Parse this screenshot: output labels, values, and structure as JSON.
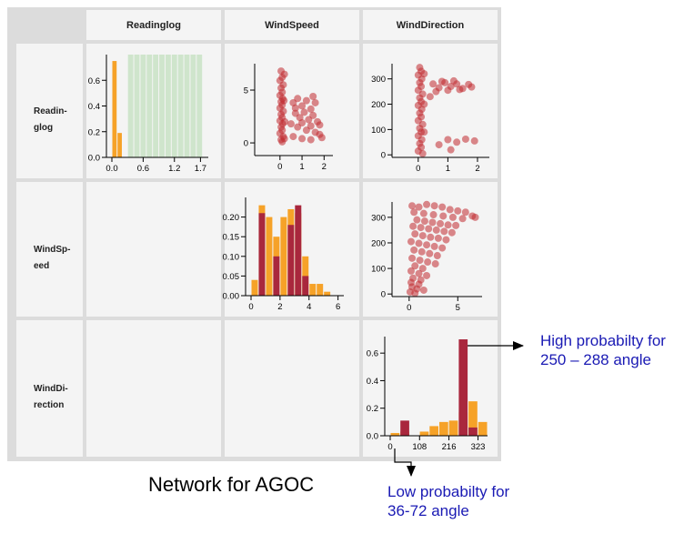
{
  "caption": "Network for AGOC",
  "columns": [
    "Readinglog",
    "WindSpeed",
    "WindDirection"
  ],
  "rows": [
    [
      "Readin-",
      "glog"
    ],
    [
      "WindSp-",
      "eed"
    ],
    [
      "WindDi-",
      "rection"
    ]
  ],
  "annotations": {
    "high": [
      "High probabilty for",
      "250 – 288 angle"
    ],
    "low": [
      "Low probabilty for",
      "36-72 angle"
    ]
  },
  "colors": {
    "orange": "#f6a228",
    "dark_red": "#a9273d",
    "scatter": "#c12a2f",
    "green_band": "#cfe5cc",
    "annotation_text": "#1a1ab4"
  },
  "chart_data": [
    {
      "type": "bar",
      "panel": "Readinglog-Readinglog",
      "bins": [
        [
          0.0,
          0.1
        ],
        [
          0.1,
          0.2
        ]
      ],
      "values": [
        0.75,
        0.19
      ],
      "highlight_bins_start": [
        0.3,
        0.42,
        0.54,
        0.66,
        0.78,
        0.9,
        1.02,
        1.14,
        1.26,
        1.38,
        1.5,
        1.62
      ],
      "highlight_bin_width": 0.12,
      "highlight_height": 0.8,
      "xlim": [
        0,
        1.85
      ],
      "ylim": [
        0,
        0.8
      ],
      "xticks": [
        "0.0",
        "0.6",
        "1.2",
        "1.7"
      ],
      "xtick_values": [
        0,
        0.6,
        1.2,
        1.7
      ],
      "yticks": [
        "0.0",
        "0.2",
        "0.4",
        "0.6"
      ],
      "ytick_values": [
        0,
        0.2,
        0.4,
        0.6
      ]
    },
    {
      "type": "scatter",
      "panel": "WindSpeed-Readinglog",
      "xlim": [
        -0.9,
        2.4
      ],
      "ylim": [
        -1.2,
        7.5
      ],
      "xticks": [
        "0",
        "1",
        "2"
      ],
      "xtick_values": [
        0,
        1,
        2
      ],
      "yticks": [
        "0",
        "5"
      ],
      "ytick_values": [
        0,
        5
      ],
      "points": [
        [
          0.05,
          6.8
        ],
        [
          0.1,
          6.2
        ],
        [
          0.0,
          5.9
        ],
        [
          0.15,
          5.5
        ],
        [
          0.05,
          5.2
        ],
        [
          0.1,
          4.8
        ],
        [
          0.0,
          4.5
        ],
        [
          0.12,
          4.2
        ],
        [
          0.05,
          3.9
        ],
        [
          0.1,
          3.6
        ],
        [
          0.0,
          3.3
        ],
        [
          0.15,
          3.0
        ],
        [
          0.05,
          2.7
        ],
        [
          0.1,
          2.4
        ],
        [
          0.0,
          2.1
        ],
        [
          0.12,
          1.8
        ],
        [
          0.05,
          1.5
        ],
        [
          0.1,
          1.2
        ],
        [
          0.0,
          0.9
        ],
        [
          0.15,
          0.6
        ],
        [
          0.05,
          0.3
        ],
        [
          0.1,
          0.1
        ],
        [
          0.2,
          6.5
        ],
        [
          0.18,
          4.0
        ],
        [
          0.22,
          2.0
        ],
        [
          0.2,
          0.4
        ],
        [
          0.6,
          3.8
        ],
        [
          0.8,
          4.2
        ],
        [
          1.0,
          3.5
        ],
        [
          1.2,
          4.0
        ],
        [
          1.4,
          3.2
        ],
        [
          1.6,
          3.8
        ],
        [
          0.7,
          2.8
        ],
        [
          0.9,
          2.4
        ],
        [
          1.1,
          2.9
        ],
        [
          1.3,
          2.2
        ],
        [
          1.5,
          2.6
        ],
        [
          1.7,
          2.0
        ],
        [
          0.5,
          1.8
        ],
        [
          0.8,
          1.5
        ],
        [
          1.0,
          1.9
        ],
        [
          1.2,
          1.2
        ],
        [
          1.4,
          1.6
        ],
        [
          1.6,
          1.0
        ],
        [
          1.8,
          0.8
        ],
        [
          1.9,
          0.5
        ],
        [
          0.6,
          0.6
        ],
        [
          1.0,
          0.4
        ],
        [
          1.4,
          0.3
        ],
        [
          0.7,
          3.3
        ],
        [
          1.5,
          4.4
        ],
        [
          1.8,
          1.7
        ]
      ]
    },
    {
      "type": "scatter",
      "panel": "WindDirection-Readinglog",
      "xlim": [
        -0.7,
        2.4
      ],
      "ylim": [
        -10,
        360
      ],
      "xticks": [
        "0",
        "1",
        "2"
      ],
      "xtick_values": [
        0,
        1,
        2
      ],
      "yticks": [
        "0",
        "100",
        "200",
        "300"
      ],
      "ytick_values": [
        0,
        100,
        200,
        300
      ],
      "points": [
        [
          0.05,
          345
        ],
        [
          0.1,
          330
        ],
        [
          0.0,
          315
        ],
        [
          0.12,
          300
        ],
        [
          0.05,
          285
        ],
        [
          0.1,
          270
        ],
        [
          0.0,
          255
        ],
        [
          0.15,
          240
        ],
        [
          0.05,
          225
        ],
        [
          0.1,
          210
        ],
        [
          0.0,
          195
        ],
        [
          0.12,
          180
        ],
        [
          0.05,
          165
        ],
        [
          0.1,
          150
        ],
        [
          0.0,
          135
        ],
        [
          0.15,
          120
        ],
        [
          0.05,
          105
        ],
        [
          0.1,
          90
        ],
        [
          0.0,
          75
        ],
        [
          0.12,
          60
        ],
        [
          0.05,
          45
        ],
        [
          0.1,
          30
        ],
        [
          0.0,
          15
        ],
        [
          0.15,
          5
        ],
        [
          0.2,
          320
        ],
        [
          0.2,
          200
        ],
        [
          0.2,
          90
        ],
        [
          0.5,
          280
        ],
        [
          0.7,
          265
        ],
        [
          0.9,
          285
        ],
        [
          1.1,
          270
        ],
        [
          1.3,
          280
        ],
        [
          1.5,
          262
        ],
        [
          1.7,
          278
        ],
        [
          1.8,
          268
        ],
        [
          0.6,
          250
        ],
        [
          1.0,
          255
        ],
        [
          1.4,
          258
        ],
        [
          0.8,
          290
        ],
        [
          1.2,
          292
        ],
        [
          0.4,
          230
        ],
        [
          1.0,
          60
        ],
        [
          1.3,
          50
        ],
        [
          1.6,
          62
        ],
        [
          1.9,
          55
        ],
        [
          0.7,
          40
        ],
        [
          1.1,
          20
        ]
      ]
    },
    {
      "type": "bar",
      "panel": "WindSpeed-WindSpeed",
      "xlim": [
        0,
        6.4
      ],
      "ylim": [
        0,
        0.25
      ],
      "xticks": [
        "0",
        "2",
        "4",
        "6"
      ],
      "xtick_values": [
        0,
        2,
        4,
        6
      ],
      "yticks": [
        "0.00",
        "0.05",
        "0.10",
        "0.15",
        "0.20"
      ],
      "ytick_values": [
        0,
        0.05,
        0.1,
        0.15,
        0.2
      ],
      "bin_width": 0.5,
      "series": [
        {
          "name": "",
          "color": "orange",
          "bin_starts": [
            0,
            0.5,
            1,
            1.5,
            2,
            2.5,
            3,
            3.5,
            4,
            4.5,
            5,
            5.5
          ],
          "values": [
            0.04,
            0.23,
            0.2,
            0.15,
            0.2,
            0.22,
            0.21,
            0.1,
            0.03,
            0.03,
            0.01,
            0.0
          ]
        },
        {
          "name": "",
          "color": "dark_red",
          "bin_starts": [
            0.5,
            1.5,
            2.5,
            3,
            3.5
          ],
          "values": [
            0.21,
            0.1,
            0.18,
            0.23,
            0.05
          ]
        }
      ]
    },
    {
      "type": "scatter",
      "panel": "WindDirection-WindSpeed",
      "xlim": [
        -1.2,
        7.5
      ],
      "ylim": [
        -10,
        360
      ],
      "xticks": [
        "0",
        "5"
      ],
      "xtick_values": [
        0,
        5
      ],
      "yticks": [
        "0",
        "100",
        "200",
        "300"
      ],
      "ytick_values": [
        0,
        100,
        200,
        300
      ],
      "points": [
        [
          0.3,
          345
        ],
        [
          1.0,
          340
        ],
        [
          1.8,
          350
        ],
        [
          2.6,
          345
        ],
        [
          3.4,
          340
        ],
        [
          4.2,
          330
        ],
        [
          5.0,
          325
        ],
        [
          5.8,
          320
        ],
        [
          6.5,
          305
        ],
        [
          6.8,
          300
        ],
        [
          0.5,
          320
        ],
        [
          1.5,
          315
        ],
        [
          2.5,
          310
        ],
        [
          3.5,
          305
        ],
        [
          4.5,
          300
        ],
        [
          5.5,
          295
        ],
        [
          0.8,
          290
        ],
        [
          1.6,
          285
        ],
        [
          2.4,
          280
        ],
        [
          3.2,
          275
        ],
        [
          4.0,
          270
        ],
        [
          4.8,
          268
        ],
        [
          0.4,
          265
        ],
        [
          1.2,
          260
        ],
        [
          2.0,
          255
        ],
        [
          2.8,
          250
        ],
        [
          3.6,
          245
        ],
        [
          4.4,
          240
        ],
        [
          0.6,
          235
        ],
        [
          1.4,
          228
        ],
        [
          2.2,
          222
        ],
        [
          3.0,
          218
        ],
        [
          3.8,
          212
        ],
        [
          0.2,
          205
        ],
        [
          1.0,
          198
        ],
        [
          1.8,
          192
        ],
        [
          2.6,
          186
        ],
        [
          3.4,
          180
        ],
        [
          0.5,
          172
        ],
        [
          1.3,
          165
        ],
        [
          2.1,
          158
        ],
        [
          2.9,
          150
        ],
        [
          0.3,
          140
        ],
        [
          1.1,
          132
        ],
        [
          1.9,
          125
        ],
        [
          2.7,
          118
        ],
        [
          0.6,
          110
        ],
        [
          1.4,
          100
        ],
        [
          0.2,
          90
        ],
        [
          1.0,
          80
        ],
        [
          1.8,
          72
        ],
        [
          0.4,
          62
        ],
        [
          1.2,
          55
        ],
        [
          0.2,
          45
        ],
        [
          1.0,
          38
        ],
        [
          0.3,
          28
        ],
        [
          0.8,
          20
        ],
        [
          1.5,
          15
        ],
        [
          0.1,
          8
        ],
        [
          0.6,
          3
        ]
      ]
    },
    {
      "type": "bar",
      "panel": "WindDirection-WindDirection",
      "xlim": [
        0,
        358
      ],
      "ylim": [
        0,
        0.72
      ],
      "xticks": [
        "0",
        "108",
        "216",
        "323"
      ],
      "xtick_values": [
        0,
        108,
        216,
        323
      ],
      "yticks": [
        "0.0",
        "0.2",
        "0.4",
        "0.6"
      ],
      "ytick_values": [
        0,
        0.2,
        0.4,
        0.6
      ],
      "bin_width": 35.8,
      "series": [
        {
          "name": "",
          "color": "orange",
          "bin_starts": [
            0,
            35.8,
            71.6,
            107.4,
            143.2,
            179,
            214.8,
            250.6,
            286.4,
            322.2
          ],
          "values": [
            0.02,
            0.03,
            0.0,
            0.03,
            0.07,
            0.1,
            0.11,
            0.17,
            0.25,
            0.1
          ]
        },
        {
          "name": "",
          "color": "dark_red",
          "bin_starts": [
            35.8,
            250.6,
            286.4
          ],
          "values": [
            0.11,
            0.7,
            0.06
          ]
        }
      ]
    }
  ]
}
